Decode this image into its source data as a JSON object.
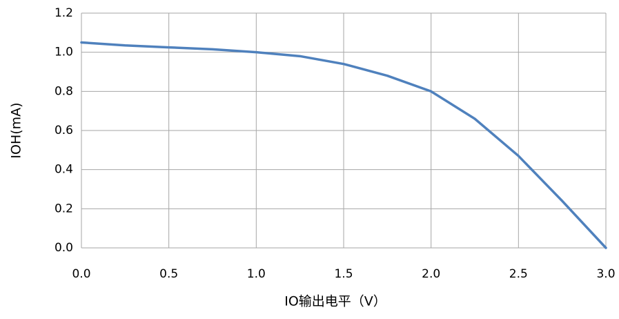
{
  "chart_data": {
    "type": "line",
    "x_label": "IO输出电平（V）",
    "y_label": "IOH(mA)",
    "x": [
      0,
      0.25,
      0.5,
      0.75,
      1.0,
      1.25,
      1.5,
      1.75,
      2.0,
      2.25,
      2.5,
      2.75,
      3.0
    ],
    "series": [
      {
        "color": "#4f81bd",
        "values": [
          1.05,
          1.035,
          1.025,
          1.015,
          1.0,
          0.98,
          0.94,
          0.88,
          0.8,
          0.66,
          0.47,
          0.24,
          0.0
        ]
      }
    ],
    "xlim": [
      0,
      3
    ],
    "ylim": [
      0,
      1.2
    ],
    "xticks": [
      {
        "value": 0,
        "label": "0.0"
      },
      0.5,
      {
        "value": 1,
        "label": "1.0"
      },
      1.5,
      {
        "value": 2,
        "label": "2.0"
      },
      2.5,
      {
        "value": 3,
        "label": "3.0"
      }
    ],
    "yticks": [
      {
        "value": 0,
        "label": "0.0"
      },
      0.2,
      0.4,
      0.6,
      0.8,
      {
        "value": 1,
        "label": "1.0"
      },
      1.2
    ],
    "grid": true
  }
}
